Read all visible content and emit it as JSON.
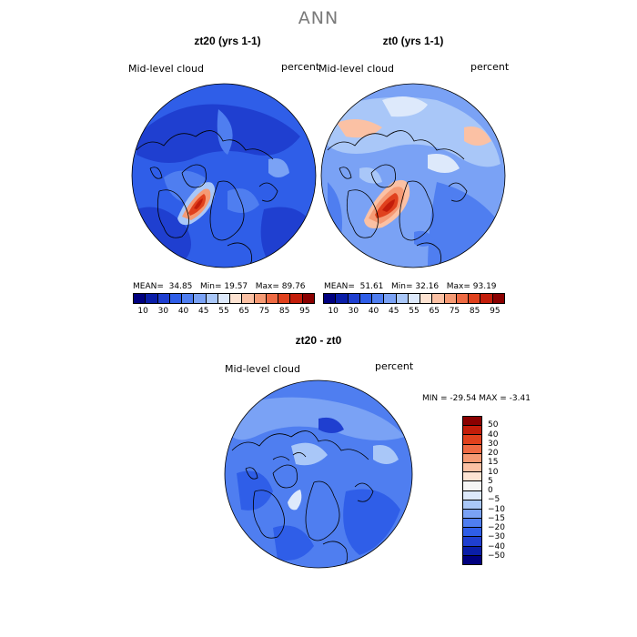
{
  "title": "ANN",
  "panels": [
    {
      "id": "zt20",
      "title": "zt20 (yrs 1-1)",
      "variable": "Mid-level cloud",
      "units": "percent",
      "stats": {
        "mean_label": "MEAN=",
        "mean": "34.85",
        "min_label": "Min=",
        "min": "19.57",
        "max_label": "Max=",
        "max": "89.76"
      }
    },
    {
      "id": "zt0",
      "title": "zt0 (yrs 1-1)",
      "variable": "Mid-level cloud",
      "units": "percent",
      "stats": {
        "mean_label": "MEAN=",
        "mean": "51.61",
        "min_label": "Min=",
        "min": "32.16",
        "max_label": "Max=",
        "max": "93.19"
      }
    },
    {
      "id": "diff",
      "title": "zt20 - zt0",
      "variable": "Mid-level cloud",
      "units": "percent",
      "minmax": "MIN = -29.54  MAX =  -3.41"
    }
  ],
  "colorbar_top": {
    "colors": [
      "#00007f",
      "#0a1ea8",
      "#1f3fd0",
      "#2f5ee8",
      "#4f7ef0",
      "#7aa2f5",
      "#a9c7f8",
      "#dde9fb",
      "#fde3d2",
      "#fbc1a4",
      "#f59a74",
      "#ee6a43",
      "#e0411d",
      "#c31d0a",
      "#8a0000"
    ],
    "ticks": [
      "10",
      "30",
      "40",
      "45",
      "55",
      "65",
      "75",
      "85",
      "95"
    ]
  },
  "colorbar_diff": {
    "colors": [
      "#8a0000",
      "#c31d0a",
      "#e0411d",
      "#ee6a43",
      "#f59a74",
      "#fbc1a4",
      "#fde3d2",
      "#f5f5f5",
      "#dde9fb",
      "#a9c7f8",
      "#7aa2f5",
      "#4f7ef0",
      "#2f5ee8",
      "#1f3fd0",
      "#0a1ea8",
      "#00007f"
    ],
    "ticks": [
      "50",
      "40",
      "30",
      "20",
      "15",
      "10",
      "5",
      "0",
      "−5",
      "−10",
      "−15",
      "−20",
      "−30",
      "−40",
      "−50"
    ]
  }
}
